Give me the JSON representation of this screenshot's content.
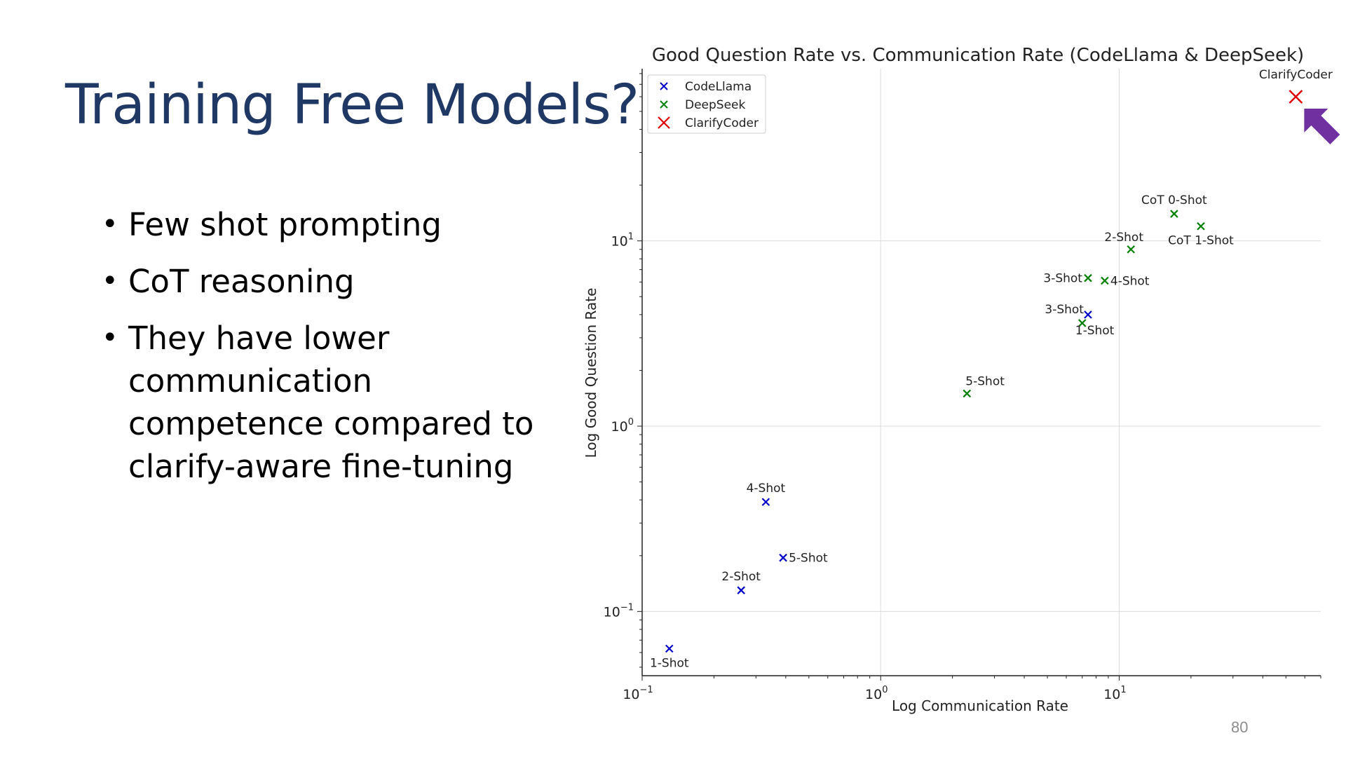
{
  "slide": {
    "title": "Training Free Models?",
    "bullets": [
      "Few shot prompting",
      "CoT reasoning",
      "They have lower communication competence compared to clarify-aware fine-tuning"
    ],
    "page_number": "80"
  },
  "chart_data": {
    "type": "scatter",
    "title": "Good Question Rate vs. Communication Rate (CodeLlama & DeepSeek)",
    "xlabel": "Log Communication Rate",
    "ylabel": "Log Good Question Rate",
    "xscale": "log",
    "yscale": "log",
    "xlim": [
      0.1,
      70
    ],
    "ylim": [
      0.045,
      85
    ],
    "grid": true,
    "legend_position": "top-left",
    "x_ticks": [
      {
        "value": 0.1,
        "base": "10",
        "exp": "−1"
      },
      {
        "value": 1,
        "base": "10",
        "exp": "0"
      },
      {
        "value": 10,
        "base": "10",
        "exp": "1"
      }
    ],
    "y_ticks": [
      {
        "value": 0.1,
        "base": "10",
        "exp": "−1"
      },
      {
        "value": 1,
        "base": "10",
        "exp": "0"
      },
      {
        "value": 10,
        "base": "10",
        "exp": "1"
      }
    ],
    "series": [
      {
        "name": "CodeLlama",
        "color": "#0000c8",
        "marker": "x",
        "points": [
          {
            "label": "1-Shot",
            "x": 0.13,
            "y": 0.063,
            "label_pos": "below"
          },
          {
            "label": "2-Shot",
            "x": 0.26,
            "y": 0.13,
            "label_pos": "above"
          },
          {
            "label": "4-Shot",
            "x": 0.33,
            "y": 0.39,
            "label_pos": "above"
          },
          {
            "label": "5-Shot",
            "x": 0.39,
            "y": 0.195,
            "label_pos": "right"
          },
          {
            "label": "3-Shot",
            "x": 7.4,
            "y": 4.0,
            "label_pos": "upper-left"
          }
        ]
      },
      {
        "name": "DeepSeek",
        "color": "#008000",
        "marker": "x",
        "points": [
          {
            "label": "1-Shot",
            "x": 7.0,
            "y": 3.6,
            "label_pos": "below-right"
          },
          {
            "label": "5-Shot",
            "x": 2.3,
            "y": 1.5,
            "label_pos": "above-right"
          },
          {
            "label": "3-Shot",
            "x": 7.4,
            "y": 6.3,
            "label_pos": "left"
          },
          {
            "label": "4-Shot",
            "x": 8.7,
            "y": 6.1,
            "label_pos": "right"
          },
          {
            "label": "2-Shot",
            "x": 11.2,
            "y": 9.0,
            "label_pos": "above-left"
          },
          {
            "label": "CoT 0-Shot",
            "x": 17.0,
            "y": 14.0,
            "label_pos": "above"
          },
          {
            "label": "CoT 1-Shot",
            "x": 22.0,
            "y": 12.0,
            "label_pos": "below"
          }
        ]
      },
      {
        "name": "ClarifyCoder",
        "color": "#dd0000",
        "marker": "X",
        "points": [
          {
            "label": "ClarifyCoder",
            "x": 55.0,
            "y": 60.0,
            "label_pos": "above"
          }
        ]
      }
    ],
    "annotations": [
      {
        "type": "arrow",
        "color": "#7030a0",
        "points_to": "ClarifyCoder",
        "direction": "up-left"
      }
    ]
  }
}
